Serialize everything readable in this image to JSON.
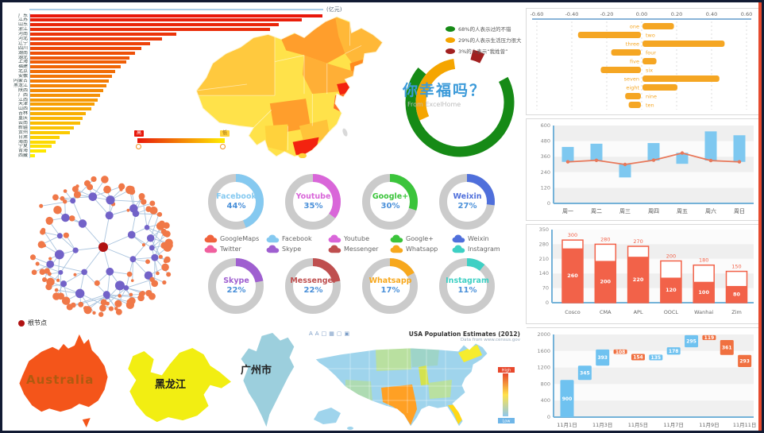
{
  "palette": {
    "frame": "#121b33",
    "edge_strip": "#e64a2e",
    "bar_high": "#e8170b",
    "bar_low": "#ffee00",
    "tornado": "#f5a623",
    "week_bar": "#7ec8f0",
    "week_line": "#e8785a",
    "ship": "#f26249",
    "wf_up": "#6fc2f0",
    "wf_down": "#f07040",
    "axis_blue": "#74b2d8",
    "donut_track": "#cbcbcb",
    "donut_pct": "#4a90d9",
    "net_root": "#b01212",
    "net_node": "#7262c8",
    "net_leaf": "#f07848",
    "net_edge": "#aac4de",
    "aus": "#f4551a",
    "hlj": "#f2ee12",
    "gz": "#9ccfdd"
  },
  "chart_data": [
    {
      "id": "province_bars",
      "type": "bar",
      "unit_label": "(亿元)",
      "categories": [
        "广东",
        "江苏",
        "山东",
        "浙江",
        "河南",
        "河北",
        "辽宁",
        "四川",
        "湖南",
        "湖北",
        "上海",
        "福建",
        "北京",
        "安徽",
        "内蒙古",
        "黑龙江",
        "陕西",
        "广西",
        "江西",
        "天津",
        "山西",
        "吉林",
        "重庆",
        "云南",
        "新疆",
        "贵州",
        "甘肃",
        "海南",
        "宁夏",
        "青海",
        "西藏"
      ],
      "values": [
        100,
        93,
        85,
        82,
        50,
        45,
        41,
        38,
        36,
        34,
        33,
        31,
        29,
        28,
        27,
        26,
        25,
        24,
        23,
        22,
        21,
        19,
        18,
        17,
        15,
        13.5,
        10,
        8.6,
        7.3,
        5.4,
        1.5
      ]
    },
    {
      "id": "china_choropleth",
      "type": "heatmap",
      "legend_high": "高",
      "legend_low": "低"
    },
    {
      "id": "happiness_donut",
      "type": "pie",
      "title": "你幸福吗？",
      "subtitle": "From ExcelHome",
      "slices": [
        {
          "label": "68%的人表示过的不错",
          "value": 68,
          "color": "#168a16"
        },
        {
          "label": "29%的人表示生活压力很大",
          "value": 29,
          "color": "#f5a500"
        },
        {
          "label": "3%的人表示“我姓曾”",
          "value": 3,
          "color": "#a22020"
        }
      ]
    },
    {
      "id": "tornado",
      "type": "bar",
      "x_ticks": [
        "-0.60",
        "-0.40",
        "-0.20",
        "0.00",
        "0.20",
        "0.40",
        "0.60"
      ],
      "categories": [
        "one",
        "two",
        "three",
        "four",
        "five",
        "six",
        "seven",
        "eight",
        "nine",
        "ten"
      ],
      "values": [
        0.18,
        -0.36,
        0.47,
        -0.17,
        0.08,
        -0.23,
        0.44,
        0.2,
        -0.09,
        -0.07
      ]
    },
    {
      "id": "week_range",
      "type": "bar",
      "categories": [
        "周一",
        "周二",
        "周三",
        "周四",
        "周五",
        "周六",
        "周日"
      ],
      "bar_ranges": [
        [
          320,
          435
        ],
        [
          330,
          460
        ],
        [
          200,
          300
        ],
        [
          330,
          465
        ],
        [
          305,
          390
        ],
        [
          330,
          555
        ],
        [
          320,
          525
        ]
      ],
      "line_values": [
        320,
        332,
        300,
        333,
        388,
        330,
        320
      ],
      "y_ticks": [
        0,
        120,
        240,
        360,
        480,
        600
      ]
    },
    {
      "id": "social_donuts",
      "type": "pie",
      "donuts": [
        {
          "name": "Facebook",
          "pct": 44,
          "color": "#85c9f0"
        },
        {
          "name": "Youtube",
          "pct": 35,
          "color": "#d966d9"
        },
        {
          "name": "Google+",
          "pct": 30,
          "color": "#3bc43b"
        },
        {
          "name": "Weixin",
          "pct": 27,
          "color": "#4f6fdb"
        },
        {
          "name": "Skype",
          "pct": 22,
          "color": "#9f5fd0"
        },
        {
          "name": "Messenger",
          "pct": 22,
          "color": "#bf4f4f"
        },
        {
          "name": "Whatsapp",
          "pct": 17,
          "color": "#f7a81d"
        },
        {
          "name": "Instagram",
          "pct": 11,
          "color": "#3ed0c4"
        }
      ],
      "legend": [
        {
          "name": "GoogleMaps",
          "color": "#f0623c"
        },
        {
          "name": "Facebook",
          "color": "#85c9f0"
        },
        {
          "name": "Youtube",
          "color": "#d966d9"
        },
        {
          "name": "Google+",
          "color": "#3bc43b"
        },
        {
          "name": "Weixin",
          "color": "#4f6fdb"
        },
        {
          "name": "Twitter",
          "color": "#f0609e"
        },
        {
          "name": "Skype",
          "color": "#9f5fd0"
        },
        {
          "name": "Messenger",
          "color": "#bf4f4f"
        },
        {
          "name": "Whatsapp",
          "color": "#f7a81d"
        },
        {
          "name": "Instagram",
          "color": "#3ed0c4"
        }
      ]
    },
    {
      "id": "network_tree",
      "type": "scatter",
      "legend_label": "根节点"
    },
    {
      "id": "shipping",
      "type": "bar",
      "categories": [
        "Cosco",
        "CMA",
        "APL",
        "OOCL",
        "Wanhai",
        "Zim"
      ],
      "totals": [
        300,
        280,
        270,
        200,
        180,
        150
      ],
      "filled": [
        260,
        200,
        220,
        120,
        100,
        80
      ],
      "y_ticks": [
        0,
        70,
        140,
        210,
        280,
        350
      ]
    },
    {
      "id": "waterfall",
      "type": "bar",
      "y_ticks": [
        0,
        400,
        800,
        1200,
        1600,
        2000
      ],
      "x_labels": [
        "11月1日",
        "11月3日",
        "11月5日",
        "11月7日",
        "11月9日",
        "11月11日"
      ],
      "bars": [
        {
          "label": "900",
          "from": 0,
          "to": 900,
          "dir": "up"
        },
        {
          "label": "345",
          "from": 900,
          "to": 1245,
          "dir": "up"
        },
        {
          "label": "393",
          "from": 1245,
          "to": 1638,
          "dir": "up"
        },
        {
          "label": "108",
          "from": 1530,
          "to": 1638,
          "dir": "down"
        },
        {
          "label": "154",
          "from": 1376,
          "to": 1530,
          "dir": "down"
        },
        {
          "label": "135",
          "from": 1376,
          "to": 1511,
          "dir": "up"
        },
        {
          "label": "178",
          "from": 1511,
          "to": 1689,
          "dir": "up"
        },
        {
          "label": "295",
          "from": 1689,
          "to": 1984,
          "dir": "up"
        },
        {
          "label": "119",
          "from": 1865,
          "to": 1984,
          "dir": "down"
        },
        {
          "label": "361",
          "from": 1504,
          "to": 1865,
          "dir": "down"
        },
        {
          "label": "293",
          "from": 1211,
          "to": 1504,
          "dir": "down"
        }
      ]
    },
    {
      "id": "region_maps",
      "type": "heatmap",
      "australia_label": "Australia",
      "heilongjiang_label": "黑龙江",
      "guangzhou_label": "广州市"
    },
    {
      "id": "usa_choropleth",
      "type": "heatmap",
      "title": "USA Population Estimates (2012)",
      "subtitle": "Data from www.census.gov",
      "legend_high": "High",
      "legend_low": "Low",
      "tool_icons": [
        "A",
        "A",
        "□",
        "▦",
        "▢",
        "▣"
      ]
    }
  ]
}
